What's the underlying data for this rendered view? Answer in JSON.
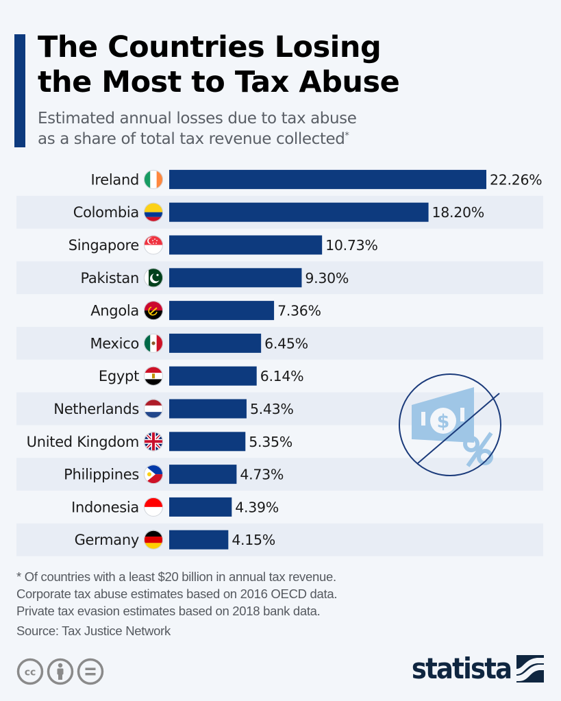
{
  "header": {
    "title_line1": "The Countries Losing",
    "title_line2": "the Most to Tax Abuse",
    "subtitle_line1": "Estimated annual losses due to tax abuse",
    "subtitle_line2": "as a share of total tax revenue collected",
    "subtitle_asterisk": "*"
  },
  "colors": {
    "bar": "#0d3a7e",
    "accent": "#0d3a7e",
    "stripe": "#e8edf5",
    "background": "#f3f6fa",
    "illustration": "#9fc6e6",
    "illustration_stroke": "#1a3a7a"
  },
  "chart_data": {
    "type": "bar",
    "orientation": "horizontal",
    "title": "The Countries Losing the Most to Tax Abuse",
    "subtitle": "Estimated annual losses due to tax abuse as a share of total tax revenue collected*",
    "xlabel": "",
    "ylabel": "",
    "unit": "%",
    "xlim": [
      0,
      22.26
    ],
    "grid": false,
    "legend": "none",
    "categories": [
      "Ireland",
      "Colombia",
      "Singapore",
      "Pakistan",
      "Angola",
      "Mexico",
      "Egypt",
      "Netherlands",
      "United Kingdom",
      "Philippines",
      "Indonesia",
      "Germany"
    ],
    "values": [
      22.26,
      18.2,
      10.73,
      9.3,
      7.36,
      6.45,
      6.14,
      5.43,
      5.35,
      4.73,
      4.39,
      4.15
    ],
    "labels": [
      "22.26%",
      "18.20%",
      "10.73%",
      "9.30%",
      "7.36%",
      "6.45%",
      "6.14%",
      "5.43%",
      "5.35%",
      "4.73%",
      "4.39%",
      "4.15%"
    ],
    "flags": [
      "ireland-flag-icon",
      "colombia-flag-icon",
      "singapore-flag-icon",
      "pakistan-flag-icon",
      "angola-flag-icon",
      "mexico-flag-icon",
      "egypt-flag-icon",
      "netherlands-flag-icon",
      "united-kingdom-flag-icon",
      "philippines-flag-icon",
      "indonesia-flag-icon",
      "germany-flag-icon"
    ]
  },
  "illustration": {
    "icon": "no-tax-money-icon",
    "currency_symbol": "$",
    "percent_symbol": "%"
  },
  "footer": {
    "note_line1": "* Of countries with a least $20 billion in annual tax revenue.",
    "note_line2": "Corporate tax abuse estimates based on 2016 OECD data.",
    "note_line3": "Private tax evasion estimates based on 2018 bank data.",
    "source": "Source: Tax Justice Network",
    "license_icons": [
      "creative-commons-icon",
      "attribution-icon",
      "no-derivatives-icon"
    ],
    "brand": "statista"
  }
}
